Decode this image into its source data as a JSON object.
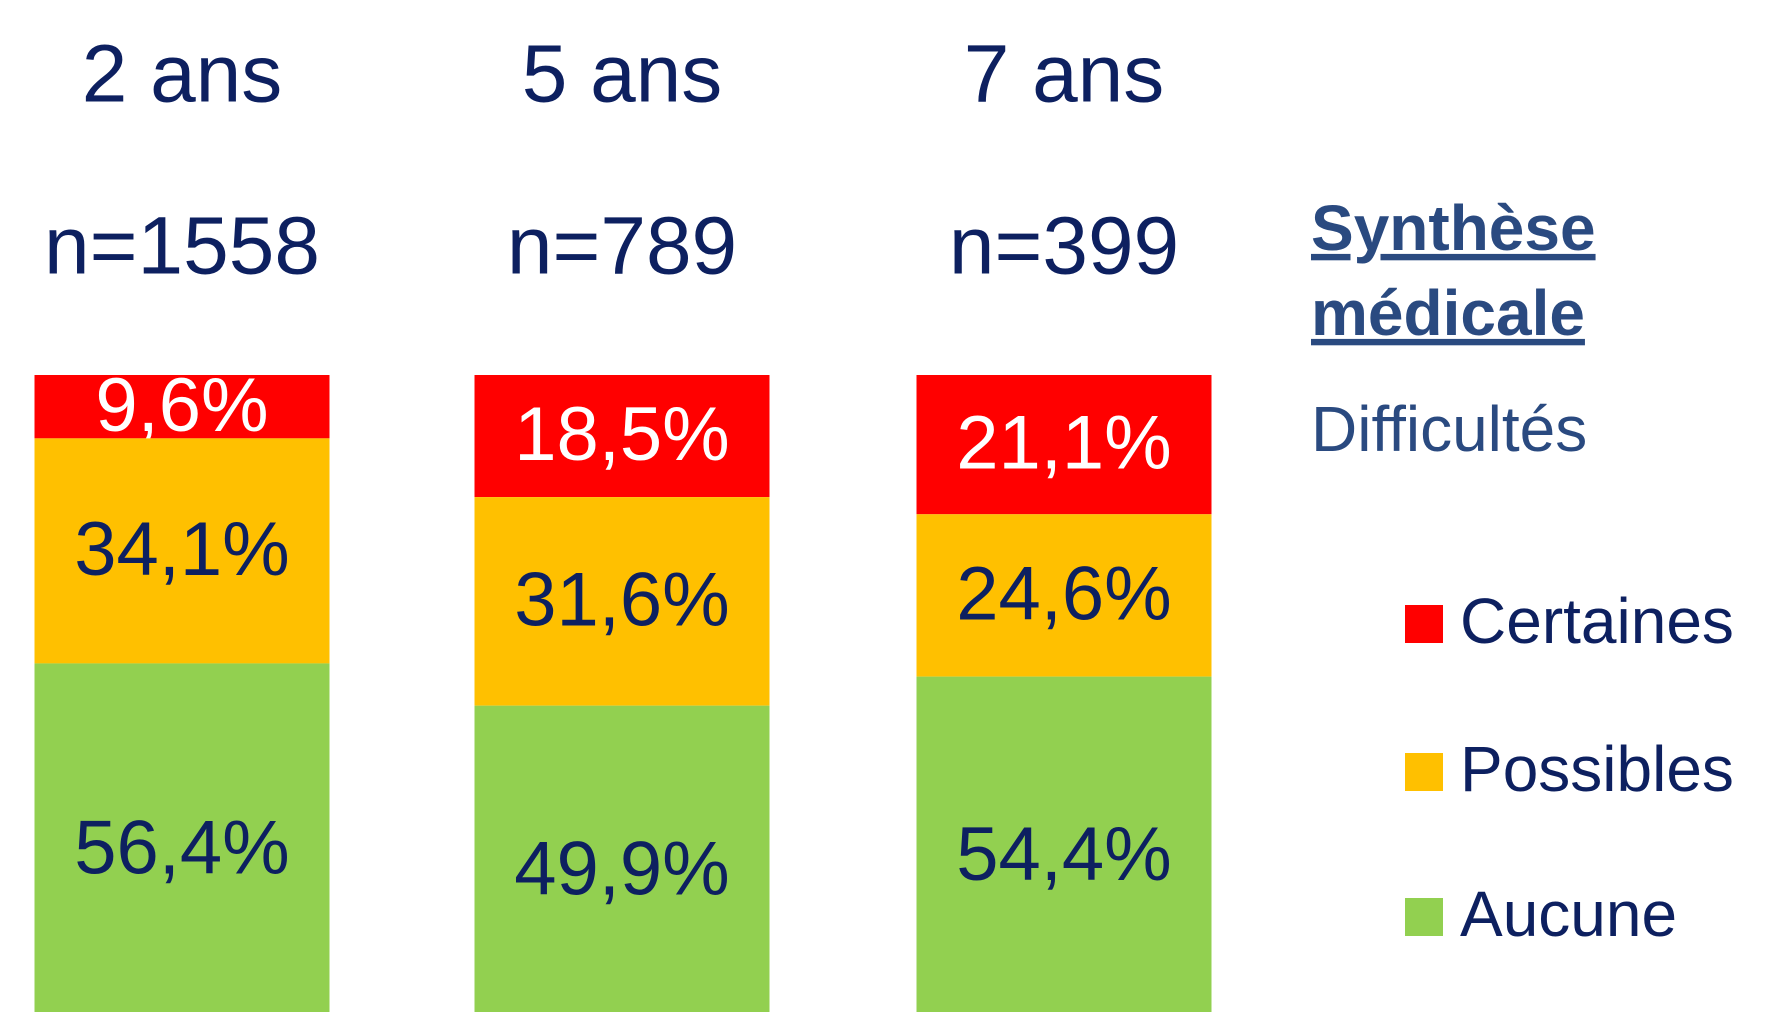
{
  "chart_data": {
    "type": "stacked_bar",
    "categories": [
      "2 ans",
      "5 ans",
      "7 ans"
    ],
    "sample_sizes": [
      "n=1558",
      "n=789",
      "n=399"
    ],
    "legend_title": "Synthèse médicale",
    "legend_subtitle": "Difficultés",
    "ylim": [
      0,
      100
    ],
    "series": [
      {
        "name": "Certaines",
        "color": "#ff0000",
        "label_color": "#ffffff",
        "values": [
          9.6,
          18.5,
          21.1
        ],
        "value_labels": [
          "9,6%",
          "18,5%",
          "21,1%"
        ]
      },
      {
        "name": "Possibles",
        "color": "#ffc000",
        "label_color": "#0d2060",
        "values": [
          34.1,
          31.6,
          24.6
        ],
        "value_labels": [
          "34,1%",
          "31,6%",
          "24,6%"
        ]
      },
      {
        "name": "Aucune",
        "color": "#92d050",
        "label_color": "#0d2060",
        "values": [
          56.4,
          49.9,
          54.4
        ],
        "value_labels": [
          "56,4%",
          "49,9%",
          "54,4%"
        ]
      }
    ]
  }
}
